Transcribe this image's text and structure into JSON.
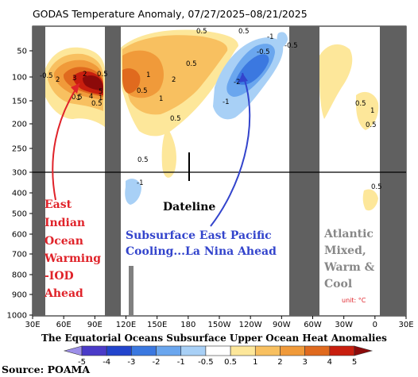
{
  "chart_data": {
    "type": "heatmap",
    "title": "GODAS Temperature Anomaly, 07/27/2025–08/21/2025",
    "subtitle": "The Equatorial Oceans Subsurface Upper Ocean Heat Anomalies",
    "source": "Source: POAMA",
    "unit_label": "unit: °C",
    "x_ticks": [
      "30E",
      "60E",
      "90E",
      "120E",
      "150E",
      "180",
      "150W",
      "120W",
      "90W",
      "60W",
      "30W",
      "0",
      "30E"
    ],
    "y_ticks": [
      "50",
      "100",
      "150",
      "200",
      "250",
      "300",
      "400",
      "500",
      "600",
      "700",
      "800",
      "900",
      "1000"
    ],
    "colorbar_ticks": [
      "-5",
      "-4",
      "-3",
      "-2",
      "-1",
      "-0.5",
      "0.5",
      "1",
      "2",
      "3",
      "4",
      "5"
    ],
    "colorbar_colors": [
      "#9d8fe8",
      "#4a3bc8",
      "#2244cc",
      "#3b78e0",
      "#6aa6ee",
      "#a8d0f6",
      "#ffffff",
      "#fde79a",
      "#f8c060",
      "#f09a3a",
      "#e06a1e",
      "#c81e0e",
      "#8c0a0a"
    ],
    "annotations": [
      {
        "text": "Dateline",
        "color": "#000000"
      },
      {
        "text": "Subsurface East Pacific",
        "color": "#3344cc"
      },
      {
        "text": "Cooling...La Nina Ahead",
        "color": "#3344cc"
      },
      {
        "text": "East",
        "color": "#e0232a"
      },
      {
        "text": "Indian",
        "color": "#e0232a"
      },
      {
        "text": "Ocean",
        "color": "#e0232a"
      },
      {
        "text": "Warming",
        "color": "#e0232a"
      },
      {
        "text": "-IOD",
        "color": "#e0232a"
      },
      {
        "text": "Ahead",
        "color": "#e0232a"
      },
      {
        "text": "Atlantic",
        "color": "#888888"
      },
      {
        "text": "Mixed,",
        "color": "#888888"
      },
      {
        "text": "Warm &",
        "color": "#888888"
      },
      {
        "text": "Cool",
        "color": "#888888"
      }
    ],
    "contour_labels": [
      "-0.5",
      "2",
      "3",
      "2",
      "1",
      "0.5",
      "4",
      "1",
      "0.5",
      "5",
      "0.5",
      "1",
      "0.5",
      "2",
      "1",
      "0.5",
      "0.5",
      "0.5",
      "0.5",
      "-0.5",
      "-1",
      "-0.5",
      "-2",
      "-1",
      "-1",
      "0.5",
      "1",
      "0.5",
      "0.5",
      "0.5"
    ],
    "land_color": "#606060"
  }
}
